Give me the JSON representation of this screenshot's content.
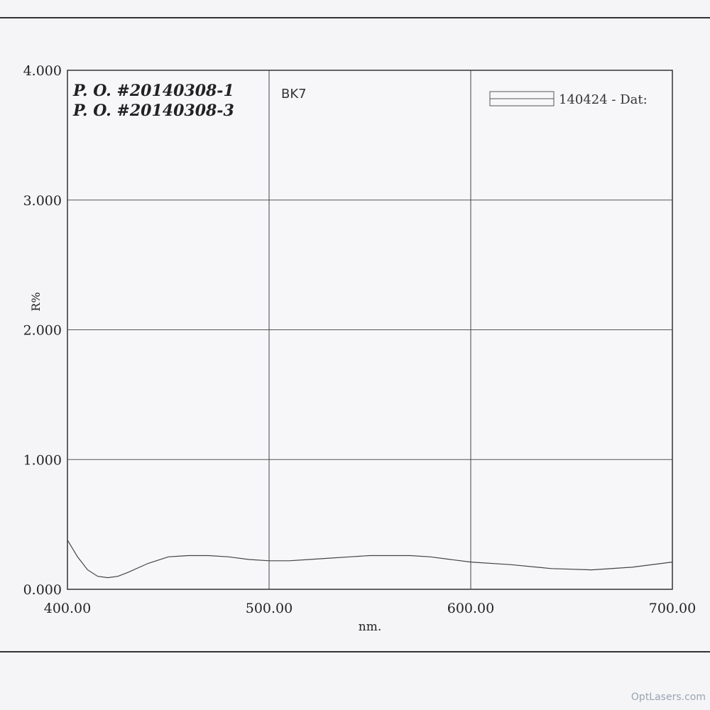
{
  "chart_data": {
    "type": "line",
    "xlabel": "nm.",
    "ylabel": "R%",
    "xlim": [
      400,
      700
    ],
    "ylim": [
      0,
      4
    ],
    "xticks": [
      "400.00",
      "500.00",
      "600.00",
      "700.00"
    ],
    "yticks": [
      "0.000",
      "1.000",
      "2.000",
      "3.000",
      "4.000"
    ],
    "grid": true,
    "legend_position": "top-right",
    "annotations": [
      "P. O. #20140308-1",
      "P. O. #20140308-3",
      "BK7"
    ],
    "series": [
      {
        "name": "140424 - Dat:",
        "color": "#444444",
        "x": [
          400,
          405,
          410,
          415,
          420,
          425,
          430,
          440,
          450,
          460,
          470,
          480,
          490,
          500,
          510,
          520,
          530,
          540,
          550,
          560,
          570,
          580,
          590,
          600,
          620,
          640,
          660,
          680,
          700
        ],
        "y": [
          0.38,
          0.25,
          0.15,
          0.1,
          0.09,
          0.1,
          0.13,
          0.2,
          0.25,
          0.26,
          0.26,
          0.25,
          0.23,
          0.22,
          0.22,
          0.23,
          0.24,
          0.25,
          0.26,
          0.26,
          0.26,
          0.25,
          0.23,
          0.21,
          0.19,
          0.16,
          0.15,
          0.17,
          0.21
        ]
      }
    ]
  },
  "watermark": "OptLasers.com"
}
